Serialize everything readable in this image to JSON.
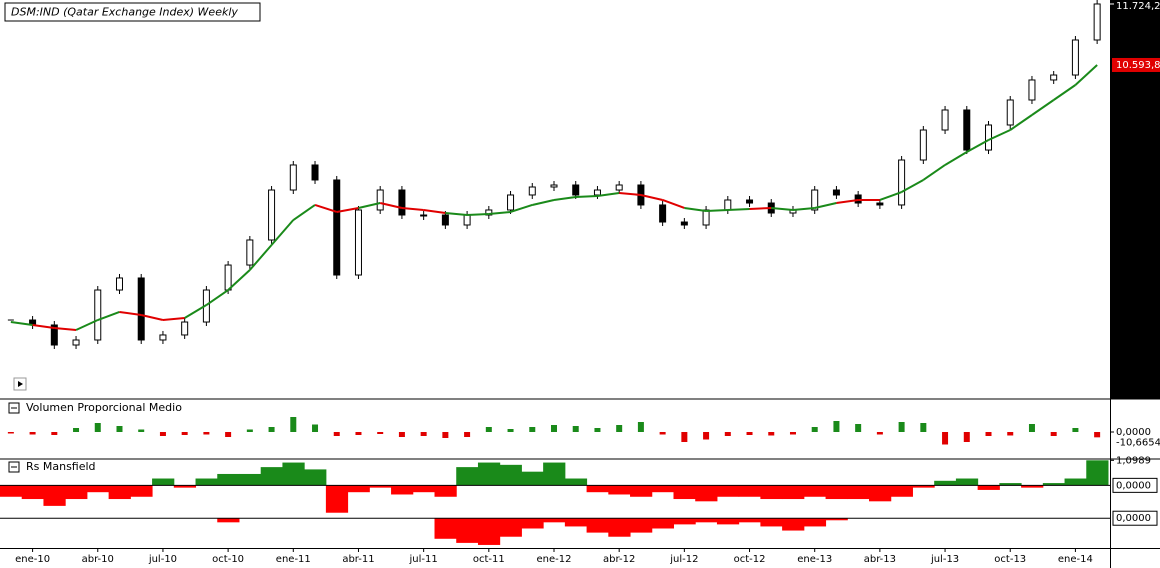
{
  "chart_data": {
    "type": "candlestick",
    "title": "DSM:IND (Qatar Exchange Index) Weekly",
    "categories": [
      null,
      "ene-10",
      null,
      null,
      "abr-10",
      null,
      null,
      "jul-10",
      null,
      null,
      "oct-10",
      null,
      null,
      "ene-11",
      null,
      null,
      "abr-11",
      null,
      null,
      "jul-11",
      null,
      null,
      "oct-11",
      null,
      null,
      "ene-12",
      null,
      null,
      "abr-12",
      null,
      null,
      "jul-12",
      null,
      null,
      "oct-12",
      null,
      null,
      "ene-13",
      null,
      null,
      "abr-13",
      null,
      null,
      "jul-13",
      null,
      null,
      "oct-13",
      null,
      null,
      "ene-14",
      null
    ],
    "close": [
      5868,
      5776,
      5405,
      5498,
      6424,
      6647,
      5498,
      5591,
      5831,
      6424,
      6887,
      7351,
      8277,
      8741,
      8463,
      6702,
      7907,
      8277,
      7814,
      7814,
      7629,
      7814,
      7907,
      8185,
      8333,
      8370,
      8185,
      8277,
      8370,
      8000,
      7684,
      7629,
      7907,
      8092,
      8036,
      7851,
      7907,
      8277,
      8185,
      8036,
      8000,
      8833,
      9389,
      9760,
      9018,
      9482,
      9945,
      10316,
      10408,
      11057,
      11724.2
    ],
    "up_color": "#ffffff",
    "down_color": "#000000",
    "ma": {
      "values": [
        5831,
        5776,
        5721,
        5683,
        5868,
        6017,
        5961,
        5868,
        5906,
        6146,
        6424,
        6795,
        7258,
        7721,
        8000,
        7870,
        7944,
        8036,
        7944,
        7907,
        7851,
        7814,
        7833,
        7870,
        8000,
        8092,
        8148,
        8166,
        8222,
        8185,
        8092,
        7944,
        7888,
        7907,
        7925,
        7944,
        7907,
        7944,
        8036,
        8092,
        8092,
        8240,
        8463,
        8741,
        8981,
        9204,
        9389,
        9667,
        9945,
        10223,
        10593.8
      ],
      "above_color": "#1a8a1a",
      "below_color": "#e00000"
    },
    "ylim": [
      4423,
      11798
    ],
    "yticks": [
      {
        "value": 11724.2,
        "label": "11.724,2"
      }
    ],
    "ma_label": {
      "value": 10593.8,
      "label": "10.593,8"
    },
    "panels": [
      {
        "title": "Volumen Proporcional Medio",
        "values": [
          -3,
          -5,
          -6,
          8,
          18,
          12,
          5,
          -8,
          -6,
          -5,
          -10,
          5,
          10,
          30,
          15,
          -8,
          -6,
          -4,
          -10,
          -8,
          -12,
          -10,
          10,
          6,
          10,
          14,
          12,
          8,
          14,
          20,
          -5,
          -20,
          -15,
          -8,
          -6,
          -7,
          -5,
          10,
          22,
          16,
          -5,
          20,
          18,
          -25,
          -20,
          -8,
          -7,
          16,
          -8,
          8,
          -10.6654
        ],
        "ylim": [
          -40,
          40
        ],
        "yticks": [
          {
            "value": 0,
            "label": "0,0000"
          }
        ],
        "last_label": {
          "value": -10.6654,
          "label": "-10,6654"
        },
        "pos_color": "#1a8a1a",
        "neg_color": "#e00000"
      },
      {
        "title": "Rs Mansfield",
        "values": [
          -0.5,
          -0.6,
          -0.9,
          -0.6,
          -0.3,
          -0.6,
          -0.5,
          0.3,
          -0.1,
          0.3,
          0.5,
          0.5,
          0.8,
          1.0,
          0.7,
          -1.2,
          -0.3,
          -0.1,
          -0.4,
          -0.3,
          -0.5,
          0.8,
          1.0,
          0.9,
          0.6,
          1.0,
          0.3,
          -0.3,
          -0.4,
          -0.5,
          -0.3,
          -0.6,
          -0.7,
          -0.5,
          -0.5,
          -0.6,
          -0.6,
          -0.5,
          -0.6,
          -0.6,
          -0.7,
          -0.5,
          -0.1,
          0.2,
          0.3,
          -0.2,
          0.1,
          -0.1,
          0.1,
          0.3,
          1.0989
        ],
        "ylim": [
          -1.3,
          1.2
        ],
        "yticks": [
          {
            "value": 1.0989,
            "label": "1,0989"
          },
          {
            "value": 0,
            "label": "0,0000"
          }
        ],
        "pos_color": "#1a8a1a",
        "neg_color": "#ff0000"
      },
      {
        "values": [
          0,
          0,
          0,
          0,
          0,
          0,
          0,
          0,
          0,
          0,
          -0.2,
          0,
          0,
          0,
          0,
          0,
          0,
          0,
          0,
          0,
          -1.0,
          -1.2,
          -1.3,
          -0.9,
          -0.5,
          -0.2,
          -0.4,
          -0.7,
          -0.9,
          -0.7,
          -0.5,
          -0.3,
          -0.2,
          -0.3,
          -0.2,
          -0.4,
          -0.6,
          -0.4,
          -0.1,
          0,
          0,
          0,
          0,
          0,
          0,
          0,
          0,
          0,
          0,
          0,
          0
        ],
        "ylim": [
          -1.4,
          0.4
        ],
        "yticks": [
          {
            "value": 0,
            "label": "0,0000"
          }
        ],
        "pos_color": "#1a8a1a",
        "neg_color": "#ff0000"
      }
    ]
  }
}
